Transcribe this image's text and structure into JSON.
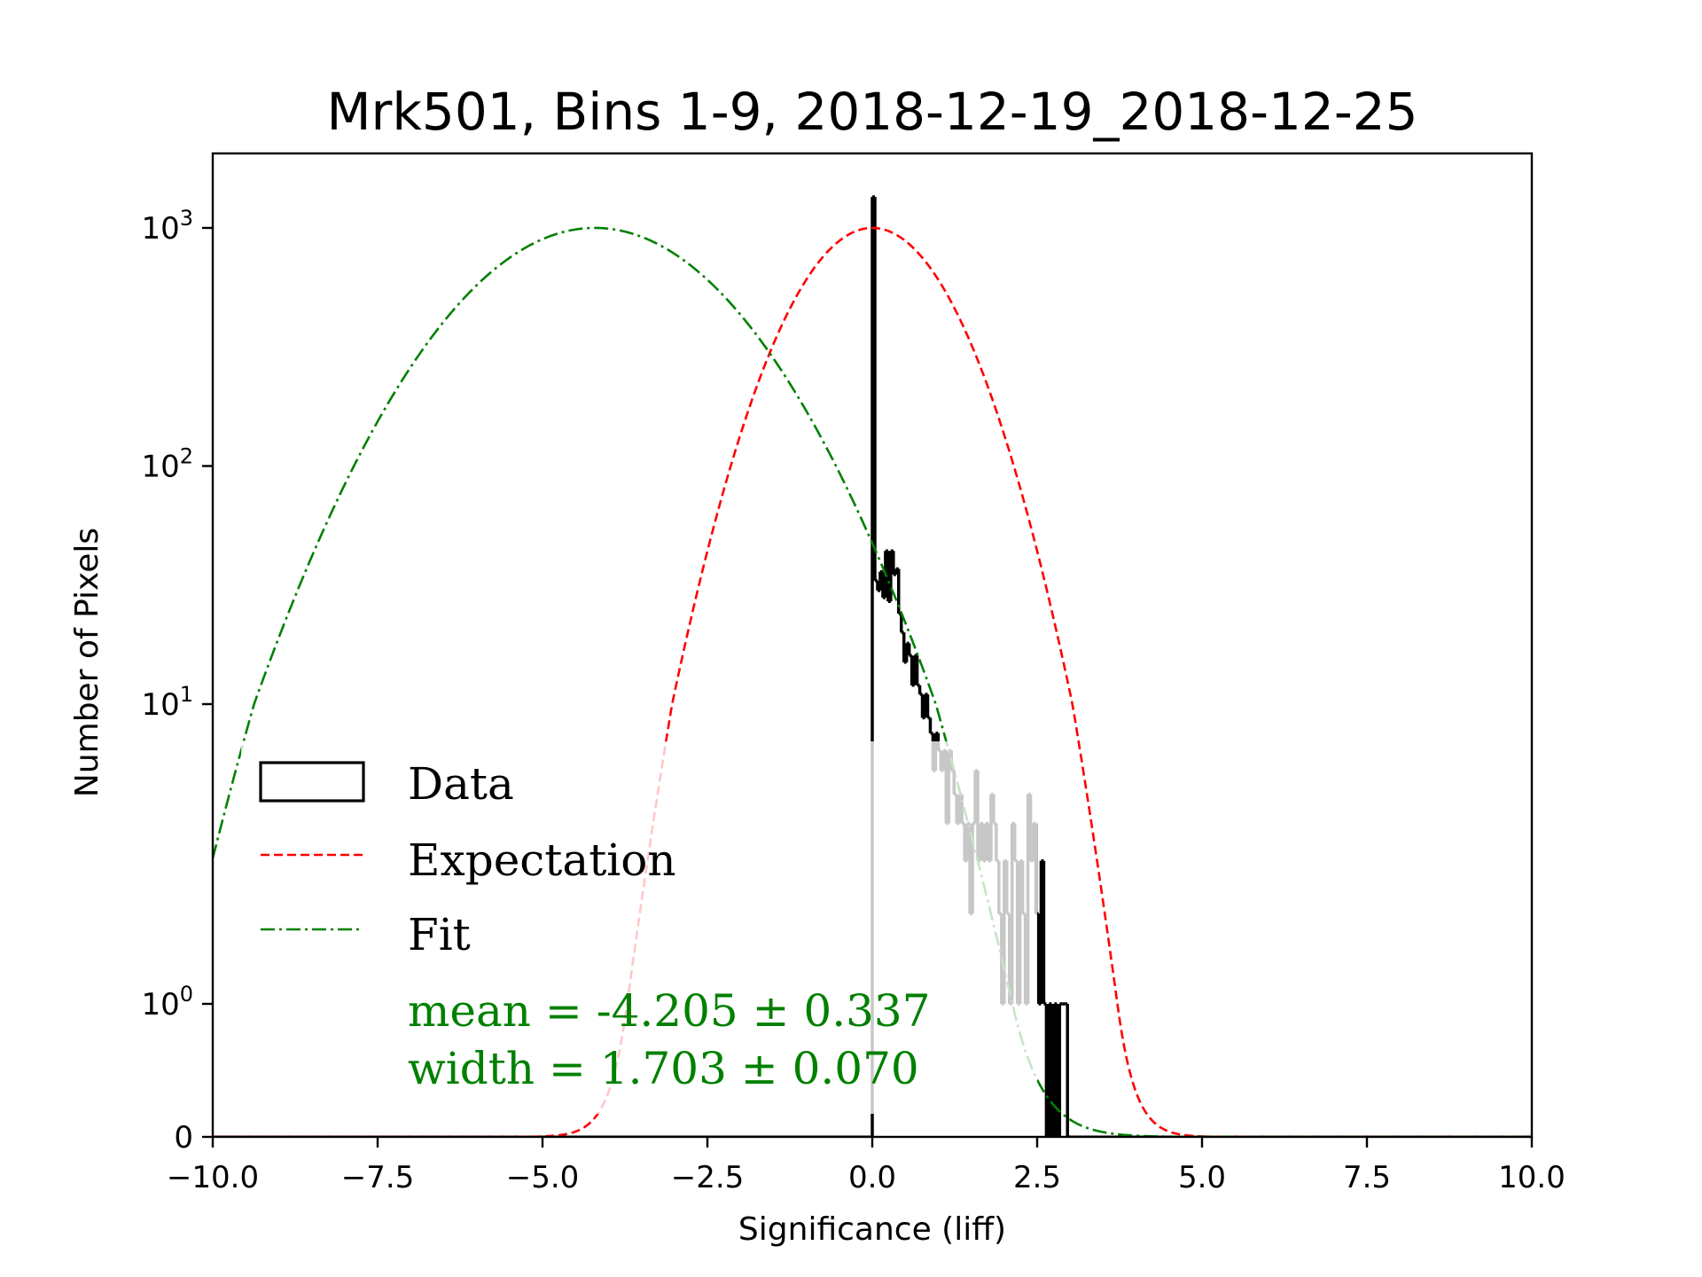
{
  "chart_data": {
    "type": "histogram",
    "title": "Mrk501, Bins 1-9, 2018-12-19_2018-12-25",
    "xlabel": "Significance (liff)",
    "ylabel": "Number of Pixels",
    "xlim": [
      -10.0,
      10.0
    ],
    "ylim": [
      0,
      2000
    ],
    "yscale": "symlog",
    "grid": false,
    "xticks": [
      {
        "value": -10.0,
        "label": "−10.0"
      },
      {
        "value": -7.5,
        "label": "−7.5"
      },
      {
        "value": -5.0,
        "label": "−5.0"
      },
      {
        "value": -2.5,
        "label": "−2.5"
      },
      {
        "value": 0.0,
        "label": "0.0"
      },
      {
        "value": 2.5,
        "label": "2.5"
      },
      {
        "value": 5.0,
        "label": "5.0"
      },
      {
        "value": 7.5,
        "label": "7.5"
      },
      {
        "value": 10.0,
        "label": "10.0"
      }
    ],
    "yticks": [
      {
        "value": 0,
        "base": "0",
        "exp": ""
      },
      {
        "value": 1,
        "base": "10",
        "exp": "0"
      },
      {
        "value": 10,
        "base": "10",
        "exp": "1"
      },
      {
        "value": 100,
        "base": "10",
        "exp": "2"
      },
      {
        "value": 1000,
        "base": "10",
        "exp": "3"
      }
    ],
    "legend": {
      "placement": "lower-left",
      "entries": [
        {
          "label": "Data",
          "style": "box",
          "color": "#000000"
        },
        {
          "label": "Expectation",
          "style": "dashed",
          "color": "#ff0000"
        },
        {
          "label": "Fit",
          "style": "dashdot",
          "color": "#008000"
        }
      ]
    },
    "annotations": [
      {
        "text": "mean = -4.205 ± 0.337",
        "color": "#008000"
      },
      {
        "text": "width = 1.703 ± 0.070",
        "color": "#008000"
      }
    ],
    "series": [
      {
        "name": "Expectation",
        "type": "gaussian",
        "amplitude": 1000,
        "mean": 0.0,
        "sigma": 1.0,
        "color": "#ff0000"
      },
      {
        "name": "Fit",
        "type": "gaussian",
        "amplitude": 1000,
        "mean": -4.205,
        "sigma": 1.703,
        "color": "#008000"
      },
      {
        "name": "Data",
        "type": "step",
        "color": "#000000",
        "bin_width": 0.04,
        "bins": [
          {
            "x": 0.0,
            "y": 1350
          },
          {
            "x": 0.04,
            "y": 33
          },
          {
            "x": 0.08,
            "y": 30
          },
          {
            "x": 0.12,
            "y": 36
          },
          {
            "x": 0.16,
            "y": 28
          },
          {
            "x": 0.2,
            "y": 44
          },
          {
            "x": 0.24,
            "y": 27
          },
          {
            "x": 0.28,
            "y": 44
          },
          {
            "x": 0.32,
            "y": 35
          },
          {
            "x": 0.36,
            "y": 37
          },
          {
            "x": 0.4,
            "y": 24
          },
          {
            "x": 0.44,
            "y": 20
          },
          {
            "x": 0.48,
            "y": 15
          },
          {
            "x": 0.52,
            "y": 18
          },
          {
            "x": 0.56,
            "y": 16
          },
          {
            "x": 0.6,
            "y": 12
          },
          {
            "x": 0.64,
            "y": 16
          },
          {
            "x": 0.68,
            "y": 12
          },
          {
            "x": 0.72,
            "y": 11
          },
          {
            "x": 0.76,
            "y": 9
          },
          {
            "x": 0.8,
            "y": 11
          },
          {
            "x": 0.84,
            "y": 9
          },
          {
            "x": 0.88,
            "y": 8
          },
          {
            "x": 0.92,
            "y": 6
          },
          {
            "x": 0.96,
            "y": 8
          },
          {
            "x": 1.0,
            "y": 7
          },
          {
            "x": 1.04,
            "y": 6
          },
          {
            "x": 1.08,
            "y": 7
          },
          {
            "x": 1.12,
            "y": 4
          },
          {
            "x": 1.16,
            "y": 7
          },
          {
            "x": 1.2,
            "y": 6
          },
          {
            "x": 1.24,
            "y": 5
          },
          {
            "x": 1.28,
            "y": 4
          },
          {
            "x": 1.32,
            "y": 5
          },
          {
            "x": 1.36,
            "y": 4
          },
          {
            "x": 1.4,
            "y": 3
          },
          {
            "x": 1.44,
            "y": 4
          },
          {
            "x": 1.48,
            "y": 2
          },
          {
            "x": 1.52,
            "y": 4
          },
          {
            "x": 1.56,
            "y": 6
          },
          {
            "x": 1.6,
            "y": 3
          },
          {
            "x": 1.64,
            "y": 4
          },
          {
            "x": 1.68,
            "y": 3
          },
          {
            "x": 1.72,
            "y": 4
          },
          {
            "x": 1.76,
            "y": 3
          },
          {
            "x": 1.8,
            "y": 5
          },
          {
            "x": 1.84,
            "y": 4
          },
          {
            "x": 1.88,
            "y": 3
          },
          {
            "x": 1.92,
            "y": 2
          },
          {
            "x": 1.96,
            "y": 1
          },
          {
            "x": 2.0,
            "y": 3
          },
          {
            "x": 2.04,
            "y": 2
          },
          {
            "x": 2.08,
            "y": 1
          },
          {
            "x": 2.12,
            "y": 4
          },
          {
            "x": 2.16,
            "y": 3
          },
          {
            "x": 2.2,
            "y": 1
          },
          {
            "x": 2.24,
            "y": 3
          },
          {
            "x": 2.28,
            "y": 2
          },
          {
            "x": 2.32,
            "y": 1
          },
          {
            "x": 2.36,
            "y": 5
          },
          {
            "x": 2.4,
            "y": 3
          },
          {
            "x": 2.44,
            "y": 4
          },
          {
            "x": 2.48,
            "y": 2
          },
          {
            "x": 2.52,
            "y": 1
          },
          {
            "x": 2.56,
            "y": 3
          },
          {
            "x": 2.6,
            "y": 1
          },
          {
            "x": 2.64,
            "y": 0
          },
          {
            "x": 2.68,
            "y": 1
          },
          {
            "x": 2.72,
            "y": 0
          },
          {
            "x": 2.76,
            "y": 1
          },
          {
            "x": 2.8,
            "y": 0
          },
          {
            "x": 2.84,
            "y": 1
          },
          {
            "x": 2.88,
            "y": 1
          },
          {
            "x": 2.92,
            "y": 1
          },
          {
            "x": 2.96,
            "y": 0
          }
        ]
      }
    ]
  }
}
